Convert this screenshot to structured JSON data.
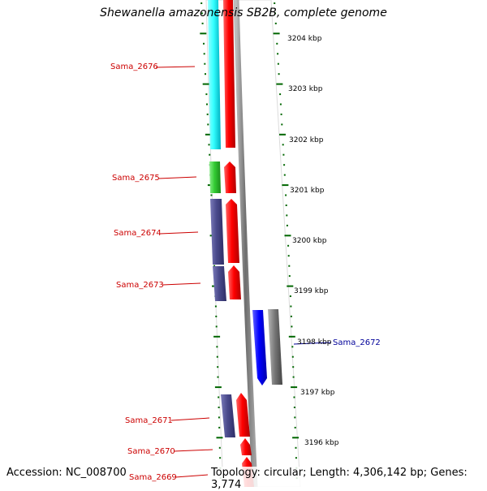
{
  "title": "Shewanella amazonensis SB2B, complete genome",
  "footer": {
    "accession": "Accession: NC_008700",
    "summary": "Topology: circular; Length: 4,306,142 bp; Genes: 3,774"
  },
  "kbp_ticks": [
    "3204 kbp",
    "3203 kbp",
    "3202 kbp",
    "3201 kbp",
    "3200 kbp",
    "3199 kbp",
    "3198 kbp",
    "3197 kbp",
    "3196 kbp"
  ],
  "genes_left": [
    {
      "label": "Sama_2676",
      "color": "#cc0000"
    },
    {
      "label": "Sama_2675",
      "color": "#cc0000"
    },
    {
      "label": "Sama_2674",
      "color": "#cc0000"
    },
    {
      "label": "Sama_2673",
      "color": "#cc0000"
    },
    {
      "label": "Sama_2671",
      "color": "#cc0000"
    },
    {
      "label": "Sama_2670",
      "color": "#cc0000"
    },
    {
      "label": "Sama_2669",
      "color": "#cc0000"
    }
  ],
  "genes_right": [
    {
      "label": "Sama_2672",
      "color": "#000099"
    }
  ],
  "colors": {
    "cyan": "#33ffff",
    "red": "#ff0000",
    "green": "#33cc33",
    "slate": "#4a4a8c",
    "blue": "#0000ff",
    "gray": "#7a7a7a",
    "tick": "#006600"
  }
}
